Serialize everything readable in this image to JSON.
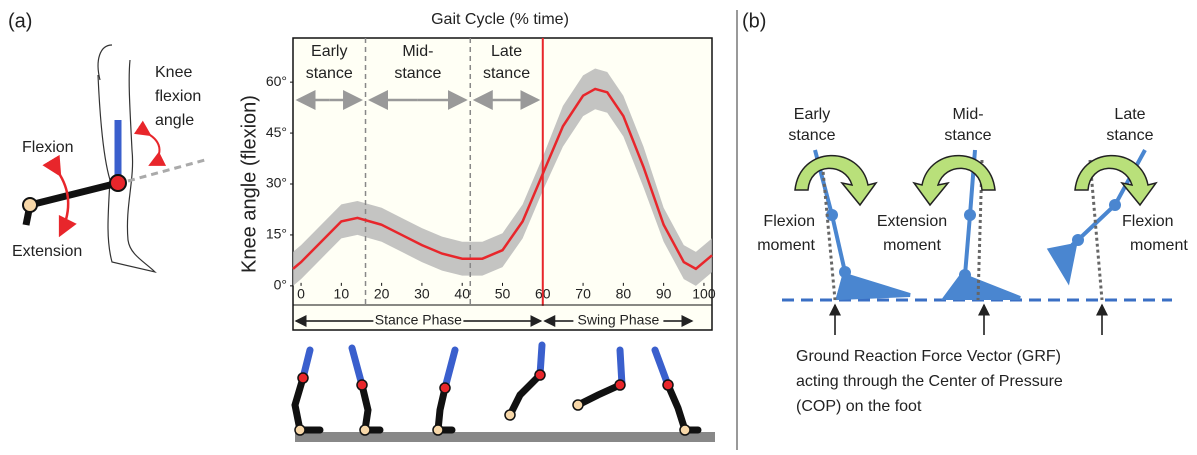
{
  "panel_a": {
    "label": "(a)",
    "knee_angle_label": [
      "Knee",
      "flexion",
      "angle"
    ],
    "flexion": "Flexion",
    "extension": "Extension"
  },
  "chart_data": {
    "type": "line",
    "title": "Gait Cycle (% time)",
    "y_label": "Knee angle (flexion)",
    "x": [
      -2,
      0,
      5,
      10,
      14,
      20,
      25,
      30,
      35,
      40,
      45,
      50,
      55,
      60,
      65,
      70,
      73,
      76,
      80,
      85,
      90,
      95,
      98,
      102
    ],
    "values": [
      5,
      7,
      13,
      19,
      20,
      18,
      15,
      12,
      9.5,
      8,
      8,
      10.5,
      19,
      33,
      47,
      56,
      58,
      57,
      50,
      35,
      18,
      7,
      5,
      9
    ],
    "band_lower": [
      0,
      2,
      8,
      14,
      15,
      13,
      10,
      7,
      4.5,
      3,
      3,
      5.5,
      14,
      28,
      41,
      50,
      52,
      51,
      44,
      29,
      13,
      2,
      0,
      4
    ],
    "band_upper": [
      10,
      12,
      18,
      24,
      25,
      23,
      20,
      17,
      14.5,
      13,
      13,
      15.5,
      24,
      38,
      53,
      62,
      64,
      63,
      56,
      41,
      23,
      12,
      10,
      14
    ],
    "color": "#e8262b",
    "band_color": "#b5b5b5",
    "xlim": [
      -2,
      102
    ],
    "ylim": [
      -13,
      73
    ],
    "xticks": [
      0,
      10,
      20,
      30,
      40,
      50,
      60,
      70,
      80,
      90,
      100
    ],
    "yticks": [
      {
        "value": 0,
        "label": "0°"
      },
      {
        "value": 15,
        "label": "15°"
      },
      {
        "value": 30,
        "label": "30°"
      },
      {
        "value": 45,
        "label": "45°"
      },
      {
        "value": 60,
        "label": "60°"
      }
    ],
    "phase_lines": [
      16,
      42,
      60
    ],
    "phase_labels": [
      [
        "Early",
        "stance"
      ],
      [
        "Mid-",
        "stance"
      ],
      [
        "Late",
        "stance"
      ]
    ],
    "stance_phase": "Stance Phase",
    "swing_phase": "Swing Phase"
  },
  "panel_b": {
    "label": "(b)",
    "stages": [
      [
        "Early",
        "stance"
      ],
      [
        "Mid-",
        "stance"
      ],
      [
        "Late",
        "stance"
      ]
    ],
    "moments": [
      [
        "Flexion",
        "moment"
      ],
      [
        "Extension",
        "moment"
      ],
      [
        "Flexion",
        "moment"
      ]
    ],
    "grf_text": [
      "Ground Reaction Force Vector (GRF)",
      "acting through the Center of Pressure",
      "(COP) on the foot"
    ]
  }
}
